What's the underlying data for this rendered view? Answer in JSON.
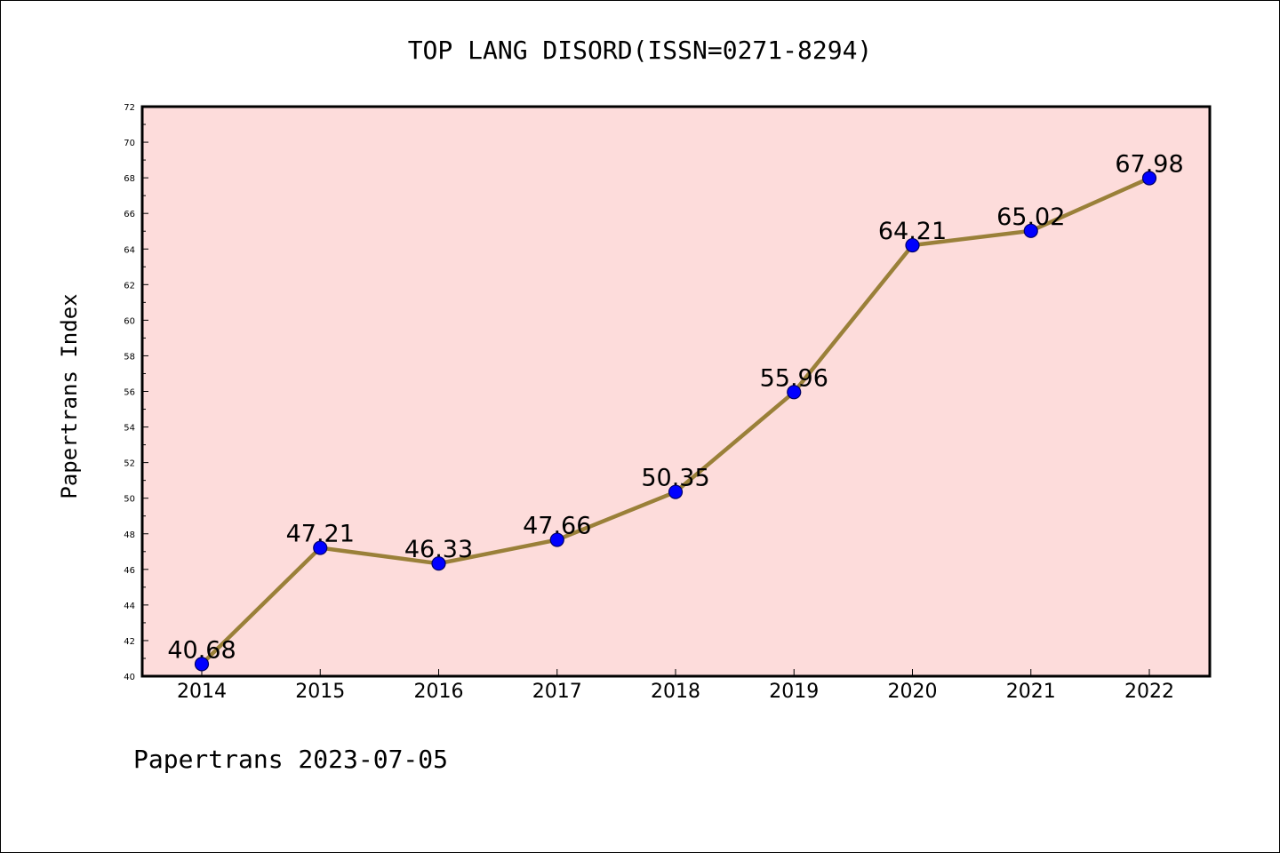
{
  "chart_data": {
    "type": "line",
    "title": "TOP LANG DISORD(ISSN=0271-8294)",
    "ylabel": "Papertrans Index",
    "xlabel": "",
    "categories": [
      "2014",
      "2015",
      "2016",
      "2017",
      "2018",
      "2019",
      "2020",
      "2021",
      "2022"
    ],
    "values": [
      40.68,
      47.21,
      46.33,
      47.66,
      50.35,
      55.96,
      64.21,
      65.02,
      67.98
    ],
    "data_labels": [
      "40.68",
      "47.21",
      "46.33",
      "47.66",
      "50.35",
      "55.96",
      "64.21",
      "65.02",
      "67.98"
    ],
    "ylim": [
      40,
      72
    ],
    "yticks": [
      "40",
      "42",
      "44",
      "46",
      "48",
      "50",
      "52",
      "54",
      "56",
      "58",
      "60",
      "62",
      "64",
      "66",
      "68",
      "70",
      "72"
    ],
    "grid": false,
    "colors": {
      "plot_background": "#fddcdb",
      "line": "#9a8039",
      "marker": "#0000ff",
      "marker_edge": "#000066"
    }
  },
  "footer": "Papertrans 2023-07-05"
}
